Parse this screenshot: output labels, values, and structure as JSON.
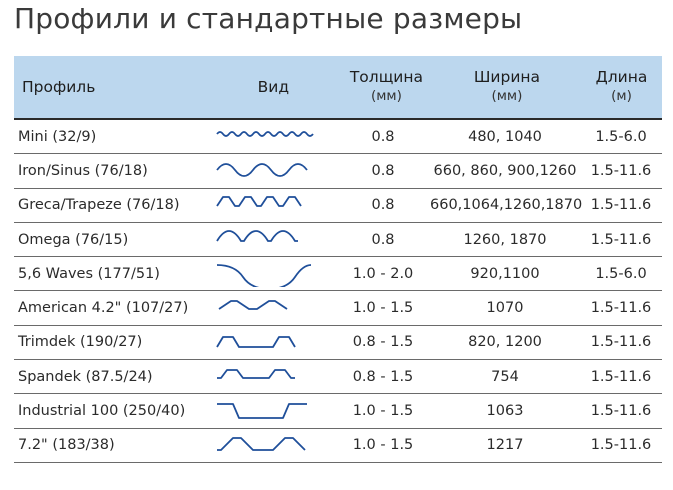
{
  "title": "Профили и стандартные размеры",
  "header": {
    "profile": "Профиль",
    "view": "Вид",
    "thickness": "Толщина",
    "thickness_unit": "(мм)",
    "width": "Ширина",
    "width_unit": "(мм)",
    "length": "Длина",
    "length_unit": "(м)"
  },
  "rows": [
    {
      "profile": "Mini (32/9)",
      "shape": "mini-wave",
      "thickness": "0.8",
      "width": "480, 1040",
      "length": "1.5-6.0"
    },
    {
      "profile": "Iron/Sinus (76/18)",
      "shape": "sinus-wave",
      "thickness": "0.8",
      "width": "660, 860, 900,1260",
      "length": "1.5-11.6"
    },
    {
      "profile": "Greca/Trapeze (76/18)",
      "shape": "greca",
      "thickness": "0.8",
      "width": "660,1064,1260,1870",
      "length": "1.5-11.6"
    },
    {
      "profile": "Omega (76/15)",
      "shape": "omega",
      "thickness": "0.8",
      "width": "1260, 1870",
      "length": "1.5-11.6"
    },
    {
      "profile": "5,6 Waves (177/51)",
      "shape": "big-wave",
      "thickness": "1.0 - 2.0",
      "width": "920,1100",
      "length": "1.5-6.0"
    },
    {
      "profile": "American 4.2\" (107/27)",
      "shape": "american",
      "thickness": "1.0 - 1.5",
      "width": "1070",
      "length": "1.5-11.6"
    },
    {
      "profile": "Trimdek (190/27)",
      "shape": "trimdek",
      "thickness": "0.8 - 1.5",
      "width": "820, 1200",
      "length": "1.5-11.6"
    },
    {
      "profile": "Spandek (87.5/24)",
      "shape": "spandek",
      "thickness": "0.8 - 1.5",
      "width": "754",
      "length": "1.5-11.6"
    },
    {
      "profile": "Industrial 100 (250/40)",
      "shape": "industrial",
      "thickness": "1.0 - 1.5",
      "width": "1063",
      "length": "1.5-11.6"
    },
    {
      "profile": "7.2\" (183/38)",
      "shape": "seven-two",
      "thickness": "1.0 - 1.5",
      "width": "1217",
      "length": "1.5-11.6"
    }
  ],
  "colors": {
    "header_bg": "#bcd7ee",
    "profile_line": "#1f4f9a"
  }
}
